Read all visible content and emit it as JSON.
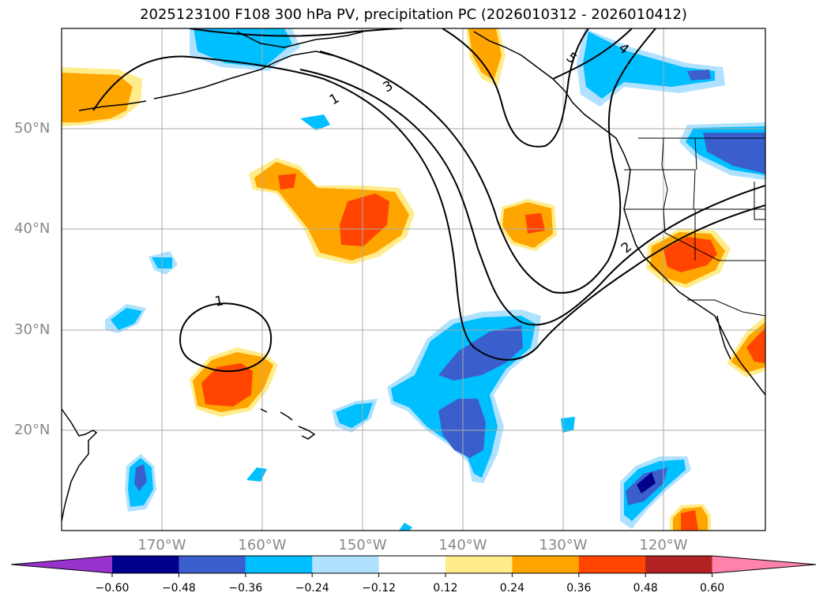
{
  "title": "2025123100 F108 300 hPa PV, precipitation PC (2026010312 - 2026010412)",
  "latitude_labels": [
    "50°N",
    "40°N",
    "30°N",
    "20°N"
  ],
  "longitude_labels": [
    "170°W",
    "160°W",
    "150°W",
    "140°W",
    "130°W",
    "120°W"
  ],
  "contour_labels": [
    "1",
    "1",
    "2",
    "3",
    "4",
    "5"
  ],
  "colorbar": {
    "ticks": [
      "−0.60",
      "−0.48",
      "−0.36",
      "−0.24",
      "−0.12",
      "0.12",
      "0.24",
      "0.36",
      "0.48",
      "0.60"
    ],
    "colors": [
      "#9932cc",
      "#00008b",
      "#3a5fcd",
      "#00bfff",
      "#b0e2ff",
      "#ffffff",
      "#ffec8b",
      "#ffa500",
      "#ff4500",
      "#b22222",
      "#ff82ab"
    ]
  },
  "colors": {
    "grid": "#aaaaaa",
    "coast": "#000000",
    "pv_contour": "#000000",
    "label": "#888888"
  }
}
